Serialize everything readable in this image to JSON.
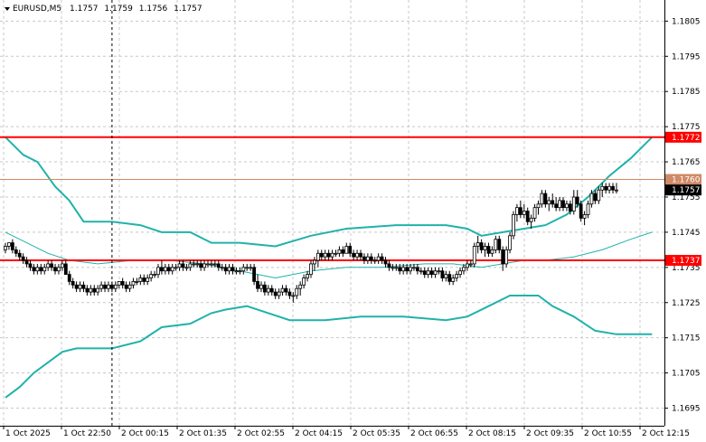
{
  "header": {
    "symbol": "EURUSD,M5",
    "open": "1.1757",
    "high": "1.1759",
    "low": "1.1756",
    "close": "1.1757",
    "menu_icon": "triangle-down-icon"
  },
  "colors": {
    "background": "#ffffff",
    "grid": "#c8c8c8",
    "candle": "#000000",
    "bands": "#20b2aa",
    "level_line": "#ff0000",
    "bid_line": "#d08a66",
    "bid_tag": "#000000"
  },
  "chart_data": {
    "type": "candlestick",
    "symbol": "EURUSD",
    "timeframe": "M5",
    "y_range": [
      1.169,
      1.1811
    ],
    "y_ticks": [
      "1.1805",
      "1.1795",
      "1.1785",
      "1.1775",
      "1.1765",
      "1.1755",
      "1.1745",
      "1.1735",
      "1.1725",
      "1.1715",
      "1.1705",
      "1.1695"
    ],
    "x_ticks": [
      "1 Oct 2025",
      "1 Oct 22:50",
      "2 Oct 00:15",
      "2 Oct 01:35",
      "2 Oct 02:55",
      "2 Oct 04:15",
      "2 Oct 05:35",
      "2 Oct 06:55",
      "2 Oct 08:15",
      "2 Oct 09:35",
      "2 Oct 10:55",
      "2 Oct 12:15"
    ],
    "horizontal_levels": [
      {
        "price": 1.1772,
        "label": "1.1772",
        "color": "#ff0000"
      },
      {
        "price": 1.1737,
        "label": "1.1737",
        "color": "#ff0000"
      }
    ],
    "bid_line": {
      "price": 1.176,
      "label": "1.1760",
      "color": "#d08a66"
    },
    "current_price": {
      "price": 1.1757,
      "label": "1.1757"
    },
    "vertical_marker_index": 30,
    "bands": {
      "upper": [
        [
          0,
          1.1772
        ],
        [
          5,
          1.1767
        ],
        [
          9,
          1.1765
        ],
        [
          14,
          1.1758
        ],
        [
          18,
          1.1754
        ],
        [
          22,
          1.1748
        ],
        [
          30,
          1.1748
        ],
        [
          38,
          1.1747
        ],
        [
          44,
          1.1745
        ],
        [
          52,
          1.1745
        ],
        [
          58,
          1.1742
        ],
        [
          66,
          1.1742
        ],
        [
          76,
          1.1741
        ],
        [
          86,
          1.1744
        ],
        [
          96,
          1.1746
        ],
        [
          110,
          1.1747
        ],
        [
          124,
          1.1747
        ],
        [
          130,
          1.1746
        ],
        [
          134,
          1.1744
        ],
        [
          140,
          1.1745
        ],
        [
          146,
          1.1746
        ],
        [
          152,
          1.1747
        ],
        [
          158,
          1.175
        ],
        [
          164,
          1.1755
        ],
        [
          170,
          1.1761
        ],
        [
          176,
          1.1766
        ],
        [
          182,
          1.1772
        ]
      ],
      "middle": [
        [
          0,
          1.1745
        ],
        [
          6,
          1.1742
        ],
        [
          12,
          1.1739
        ],
        [
          18,
          1.1737
        ],
        [
          26,
          1.1736
        ],
        [
          36,
          1.1737
        ],
        [
          46,
          1.1737
        ],
        [
          56,
          1.1736
        ],
        [
          66,
          1.1734
        ],
        [
          76,
          1.1732
        ],
        [
          86,
          1.1734
        ],
        [
          96,
          1.1735
        ],
        [
          106,
          1.1735
        ],
        [
          118,
          1.1736
        ],
        [
          126,
          1.1736
        ],
        [
          134,
          1.1735
        ],
        [
          140,
          1.1736
        ],
        [
          146,
          1.1737
        ],
        [
          152,
          1.1737
        ],
        [
          160,
          1.1738
        ],
        [
          168,
          1.174
        ],
        [
          176,
          1.1743
        ],
        [
          182,
          1.1745
        ]
      ],
      "lower": [
        [
          0,
          1.1698
        ],
        [
          4,
          1.1701
        ],
        [
          8,
          1.1705
        ],
        [
          12,
          1.1708
        ],
        [
          16,
          1.1711
        ],
        [
          20,
          1.1712
        ],
        [
          30,
          1.1712
        ],
        [
          38,
          1.1714
        ],
        [
          44,
          1.1718
        ],
        [
          52,
          1.1719
        ],
        [
          58,
          1.1722
        ],
        [
          62,
          1.1723
        ],
        [
          68,
          1.1724
        ],
        [
          74,
          1.1722
        ],
        [
          80,
          1.172
        ],
        [
          90,
          1.172
        ],
        [
          100,
          1.1721
        ],
        [
          112,
          1.1721
        ],
        [
          124,
          1.172
        ],
        [
          130,
          1.1721
        ],
        [
          136,
          1.1724
        ],
        [
          142,
          1.1727
        ],
        [
          150,
          1.1727
        ],
        [
          154,
          1.1724
        ],
        [
          160,
          1.1721
        ],
        [
          166,
          1.1717
        ],
        [
          172,
          1.1716
        ],
        [
          182,
          1.1716
        ]
      ]
    },
    "candles": [
      [
        1.174,
        1.1742,
        1.1739,
        1.1741
      ],
      [
        1.1741,
        1.1742,
        1.174,
        1.1742
      ],
      [
        1.1742,
        1.1743,
        1.1739,
        1.174
      ],
      [
        1.174,
        1.1741,
        1.1738,
        1.1739
      ],
      [
        1.1739,
        1.174,
        1.1737,
        1.1738
      ],
      [
        1.1738,
        1.1739,
        1.1736,
        1.1737
      ],
      [
        1.1737,
        1.1738,
        1.1735,
        1.1736
      ],
      [
        1.1736,
        1.1737,
        1.1734,
        1.1735
      ],
      [
        1.1735,
        1.1736,
        1.1733,
        1.1734
      ],
      [
        1.1734,
        1.1736,
        1.1733,
        1.1735
      ],
      [
        1.1735,
        1.1736,
        1.1733,
        1.1734
      ],
      [
        1.1734,
        1.1736,
        1.1733,
        1.1735
      ],
      [
        1.1735,
        1.1737,
        1.1734,
        1.1736
      ],
      [
        1.1736,
        1.1737,
        1.1734,
        1.1735
      ],
      [
        1.1735,
        1.1736,
        1.1733,
        1.1734
      ],
      [
        1.1734,
        1.1736,
        1.1733,
        1.1735
      ],
      [
        1.1735,
        1.1737,
        1.1734,
        1.1736
      ],
      [
        1.1736,
        1.1737,
        1.1733,
        1.1733
      ],
      [
        1.1733,
        1.1734,
        1.173,
        1.1731
      ],
      [
        1.1731,
        1.1732,
        1.1729,
        1.173
      ],
      [
        1.173,
        1.1731,
        1.1728,
        1.1729
      ],
      [
        1.1729,
        1.1731,
        1.1728,
        1.173
      ],
      [
        1.173,
        1.1731,
        1.1728,
        1.1729
      ],
      [
        1.1729,
        1.173,
        1.1727,
        1.1728
      ],
      [
        1.1728,
        1.173,
        1.1727,
        1.1729
      ],
      [
        1.1729,
        1.173,
        1.1727,
        1.1728
      ],
      [
        1.1728,
        1.173,
        1.1727,
        1.1729
      ],
      [
        1.1729,
        1.1731,
        1.1728,
        1.173
      ],
      [
        1.173,
        1.1731,
        1.1728,
        1.1729
      ],
      [
        1.1729,
        1.1731,
        1.1728,
        1.173
      ],
      [
        1.173,
        1.1731,
        1.1728,
        1.1729
      ],
      [
        1.1729,
        1.1731,
        1.1728,
        1.173
      ],
      [
        1.173,
        1.1731,
        1.1729,
        1.1731
      ],
      [
        1.1731,
        1.1732,
        1.1729,
        1.173
      ],
      [
        1.173,
        1.1731,
        1.1728,
        1.1729
      ],
      [
        1.1729,
        1.1731,
        1.1728,
        1.173
      ],
      [
        1.173,
        1.1732,
        1.1729,
        1.1731
      ],
      [
        1.1731,
        1.1732,
        1.173,
        1.1731
      ],
      [
        1.1731,
        1.1733,
        1.173,
        1.1732
      ],
      [
        1.1732,
        1.1733,
        1.173,
        1.1731
      ],
      [
        1.1731,
        1.1733,
        1.173,
        1.1732
      ],
      [
        1.1732,
        1.1734,
        1.1731,
        1.1733
      ],
      [
        1.1733,
        1.1734,
        1.1732,
        1.1733
      ],
      [
        1.1733,
        1.1736,
        1.1732,
        1.1735
      ],
      [
        1.1735,
        1.1737,
        1.1733,
        1.1734
      ],
      [
        1.1734,
        1.1736,
        1.1733,
        1.1735
      ],
      [
        1.1735,
        1.1736,
        1.1733,
        1.1734
      ],
      [
        1.1734,
        1.1736,
        1.1733,
        1.1735
      ],
      [
        1.1735,
        1.1736,
        1.1734,
        1.1735
      ],
      [
        1.1735,
        1.1737,
        1.1734,
        1.1736
      ],
      [
        1.1736,
        1.1737,
        1.1734,
        1.1735
      ],
      [
        1.1735,
        1.1736,
        1.1734,
        1.1735
      ],
      [
        1.1735,
        1.1737,
        1.1734,
        1.1736
      ],
      [
        1.1736,
        1.1737,
        1.1735,
        1.1736
      ],
      [
        1.1736,
        1.1737,
        1.1735,
        1.1736
      ],
      [
        1.1736,
        1.1737,
        1.1734,
        1.1735
      ],
      [
        1.1735,
        1.1737,
        1.1734,
        1.1736
      ],
      [
        1.1736,
        1.1737,
        1.1735,
        1.1736
      ],
      [
        1.1736,
        1.1737,
        1.1735,
        1.1736
      ],
      [
        1.1736,
        1.1737,
        1.1735,
        1.1736
      ],
      [
        1.1736,
        1.1737,
        1.1734,
        1.1735
      ],
      [
        1.1735,
        1.1736,
        1.1734,
        1.1735
      ],
      [
        1.1735,
        1.1736,
        1.1733,
        1.1734
      ],
      [
        1.1734,
        1.1736,
        1.1733,
        1.1735
      ],
      [
        1.1735,
        1.1736,
        1.1733,
        1.1734
      ],
      [
        1.1734,
        1.1735,
        1.1733,
        1.1734
      ],
      [
        1.1734,
        1.1735,
        1.1733,
        1.1734
      ],
      [
        1.1734,
        1.1736,
        1.1733,
        1.1735
      ],
      [
        1.1735,
        1.1736,
        1.1734,
        1.1735
      ],
      [
        1.1735,
        1.1736,
        1.1734,
        1.1735
      ],
      [
        1.1735,
        1.1736,
        1.173,
        1.1731
      ],
      [
        1.1731,
        1.1733,
        1.1728,
        1.1729
      ],
      [
        1.1729,
        1.1731,
        1.1728,
        1.173
      ],
      [
        1.173,
        1.1731,
        1.1727,
        1.1728
      ],
      [
        1.1728,
        1.173,
        1.1727,
        1.1729
      ],
      [
        1.1729,
        1.173,
        1.1727,
        1.1728
      ],
      [
        1.1728,
        1.1729,
        1.1726,
        1.1727
      ],
      [
        1.1727,
        1.1729,
        1.1726,
        1.1728
      ],
      [
        1.1728,
        1.173,
        1.1727,
        1.1729
      ],
      [
        1.1729,
        1.173,
        1.1727,
        1.1728
      ],
      [
        1.1728,
        1.1729,
        1.1726,
        1.1727
      ],
      [
        1.1727,
        1.1728,
        1.1725,
        1.1727
      ],
      [
        1.1727,
        1.173,
        1.1726,
        1.1729
      ],
      [
        1.1729,
        1.1731,
        1.1727,
        1.173
      ],
      [
        1.173,
        1.1733,
        1.1729,
        1.1732
      ],
      [
        1.1732,
        1.1734,
        1.1731,
        1.1733
      ],
      [
        1.1733,
        1.1737,
        1.1732,
        1.1736
      ],
      [
        1.1736,
        1.1738,
        1.1734,
        1.1737
      ],
      [
        1.1737,
        1.174,
        1.1735,
        1.1739
      ],
      [
        1.1739,
        1.174,
        1.1737,
        1.1738
      ],
      [
        1.1738,
        1.174,
        1.1737,
        1.1739
      ],
      [
        1.1739,
        1.174,
        1.1737,
        1.1738
      ],
      [
        1.1738,
        1.174,
        1.1737,
        1.1739
      ],
      [
        1.1739,
        1.174,
        1.1738,
        1.1739
      ],
      [
        1.1739,
        1.1741,
        1.1738,
        1.174
      ],
      [
        1.174,
        1.1741,
        1.1738,
        1.1739
      ],
      [
        1.1739,
        1.1742,
        1.1739,
        1.1741
      ],
      [
        1.1741,
        1.1742,
        1.1738,
        1.1739
      ],
      [
        1.1739,
        1.174,
        1.1737,
        1.1738
      ],
      [
        1.1738,
        1.174,
        1.1737,
        1.1739
      ],
      [
        1.1739,
        1.174,
        1.1737,
        1.1738
      ],
      [
        1.1738,
        1.1739,
        1.1736,
        1.1737
      ],
      [
        1.1737,
        1.1739,
        1.1736,
        1.1738
      ],
      [
        1.1738,
        1.1739,
        1.1736,
        1.1737
      ],
      [
        1.1737,
        1.1738,
        1.1736,
        1.1737
      ],
      [
        1.1737,
        1.1739,
        1.1736,
        1.1738
      ],
      [
        1.1738,
        1.1739,
        1.1736,
        1.1737
      ],
      [
        1.1737,
        1.1738,
        1.1735,
        1.1736
      ],
      [
        1.1736,
        1.1737,
        1.1734,
        1.1735
      ],
      [
        1.1735,
        1.1736,
        1.1734,
        1.1735
      ],
      [
        1.1735,
        1.1736,
        1.1734,
        1.1735
      ],
      [
        1.1735,
        1.1736,
        1.1733,
        1.1734
      ],
      [
        1.1734,
        1.1736,
        1.1733,
        1.1735
      ],
      [
        1.1735,
        1.1736,
        1.1733,
        1.1734
      ],
      [
        1.1734,
        1.1736,
        1.1733,
        1.1735
      ],
      [
        1.1735,
        1.1736,
        1.1734,
        1.1735
      ],
      [
        1.1735,
        1.1736,
        1.1733,
        1.1734
      ],
      [
        1.1734,
        1.1735,
        1.1733,
        1.1734
      ],
      [
        1.1734,
        1.1735,
        1.1732,
        1.1733
      ],
      [
        1.1733,
        1.1735,
        1.1732,
        1.1734
      ],
      [
        1.1734,
        1.1735,
        1.1732,
        1.1733
      ],
      [
        1.1733,
        1.1735,
        1.1732,
        1.1734
      ],
      [
        1.1734,
        1.1735,
        1.1733,
        1.1734
      ],
      [
        1.1734,
        1.1735,
        1.1731,
        1.1732
      ],
      [
        1.1732,
        1.1734,
        1.1731,
        1.1733
      ],
      [
        1.1733,
        1.1734,
        1.173,
        1.1731
      ],
      [
        1.1731,
        1.1733,
        1.173,
        1.1732
      ],
      [
        1.1732,
        1.1734,
        1.1731,
        1.1733
      ],
      [
        1.1733,
        1.1735,
        1.1732,
        1.1734
      ],
      [
        1.1734,
        1.1736,
        1.1733,
        1.1735
      ],
      [
        1.1735,
        1.1737,
        1.1734,
        1.1736
      ],
      [
        1.1736,
        1.1737,
        1.1735,
        1.1736
      ],
      [
        1.1736,
        1.1742,
        1.1735,
        1.1741
      ],
      [
        1.1741,
        1.1744,
        1.1739,
        1.1742
      ],
      [
        1.1742,
        1.1743,
        1.1739,
        1.174
      ],
      [
        1.174,
        1.1742,
        1.1738,
        1.1741
      ],
      [
        1.1741,
        1.1742,
        1.1738,
        1.1739
      ],
      [
        1.1739,
        1.1741,
        1.1738,
        1.174
      ],
      [
        1.174,
        1.1744,
        1.1739,
        1.1743
      ],
      [
        1.1743,
        1.1744,
        1.1739,
        1.174
      ],
      [
        1.174,
        1.1741,
        1.1734,
        1.1736
      ],
      [
        1.1736,
        1.1741,
        1.1735,
        1.174
      ],
      [
        1.174,
        1.1745,
        1.1739,
        1.1744
      ],
      [
        1.1744,
        1.1751,
        1.1743,
        1.175
      ],
      [
        1.175,
        1.1753,
        1.1748,
        1.1752
      ],
      [
        1.1752,
        1.1754,
        1.1749,
        1.175
      ],
      [
        1.175,
        1.1753,
        1.1749,
        1.1751
      ],
      [
        1.1751,
        1.1752,
        1.1747,
        1.1748
      ],
      [
        1.1748,
        1.175,
        1.1746,
        1.1749
      ],
      [
        1.1749,
        1.1753,
        1.1748,
        1.1752
      ],
      [
        1.1752,
        1.1754,
        1.175,
        1.1753
      ],
      [
        1.1753,
        1.1757,
        1.1752,
        1.1756
      ],
      [
        1.1756,
        1.1757,
        1.1752,
        1.1753
      ],
      [
        1.1753,
        1.1755,
        1.1751,
        1.1754
      ],
      [
        1.1754,
        1.1756,
        1.1752,
        1.1753
      ],
      [
        1.1753,
        1.1755,
        1.1751,
        1.1752
      ],
      [
        1.1752,
        1.1755,
        1.1751,
        1.1754
      ],
      [
        1.1754,
        1.1755,
        1.1751,
        1.1752
      ],
      [
        1.1752,
        1.1754,
        1.1751,
        1.1753
      ],
      [
        1.1753,
        1.1754,
        1.175,
        1.1751
      ],
      [
        1.1751,
        1.1757,
        1.175,
        1.1755
      ],
      [
        1.1755,
        1.1757,
        1.1752,
        1.1753
      ],
      [
        1.1753,
        1.1754,
        1.1748,
        1.1749
      ],
      [
        1.1749,
        1.1751,
        1.1747,
        1.175
      ],
      [
        1.175,
        1.1754,
        1.1749,
        1.1753
      ],
      [
        1.1753,
        1.1757,
        1.1752,
        1.1756
      ],
      [
        1.1756,
        1.1757,
        1.1753,
        1.1754
      ],
      [
        1.1754,
        1.1758,
        1.1753,
        1.1757
      ],
      [
        1.1757,
        1.1759,
        1.1755,
        1.1758
      ],
      [
        1.1758,
        1.1759,
        1.1756,
        1.1757
      ],
      [
        1.1757,
        1.1759,
        1.1756,
        1.1758
      ],
      [
        1.1758,
        1.1759,
        1.1756,
        1.1757
      ],
      [
        1.1757,
        1.1759,
        1.1756,
        1.1757
      ]
    ]
  }
}
